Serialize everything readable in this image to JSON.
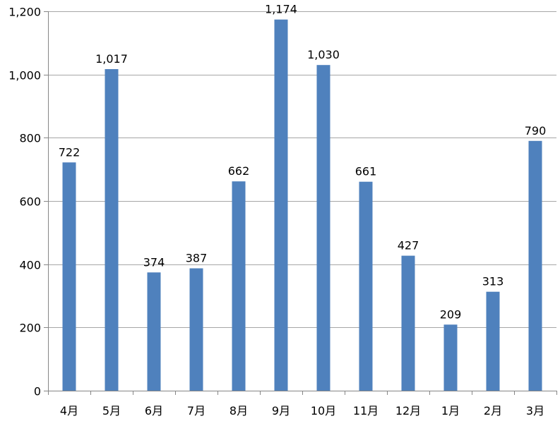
{
  "chart_data": {
    "type": "bar",
    "categories": [
      "4月",
      "5月",
      "6月",
      "7月",
      "8月",
      "9月",
      "10月",
      "11月",
      "12月",
      "1月",
      "2月",
      "3月"
    ],
    "values": [
      722,
      1017,
      374,
      387,
      662,
      1174,
      1030,
      661,
      427,
      209,
      313,
      790
    ],
    "value_labels": [
      "722",
      "1,017",
      "374",
      "387",
      "662",
      "1,174",
      "1,030",
      "661",
      "427",
      "209",
      "313",
      "790"
    ],
    "ylim": [
      0,
      1200
    ],
    "yticks": [
      0,
      200,
      400,
      600,
      800,
      1000,
      1200
    ],
    "ytick_labels": [
      "0",
      "200",
      "400",
      "600",
      "800",
      "1,000",
      "1,200"
    ],
    "grid": true,
    "legend": "none",
    "title": "",
    "xlabel": "",
    "ylabel": "",
    "bar_color": "#4F81BD",
    "grid_color": "#A6A6A6",
    "axis_color": "#868686"
  }
}
